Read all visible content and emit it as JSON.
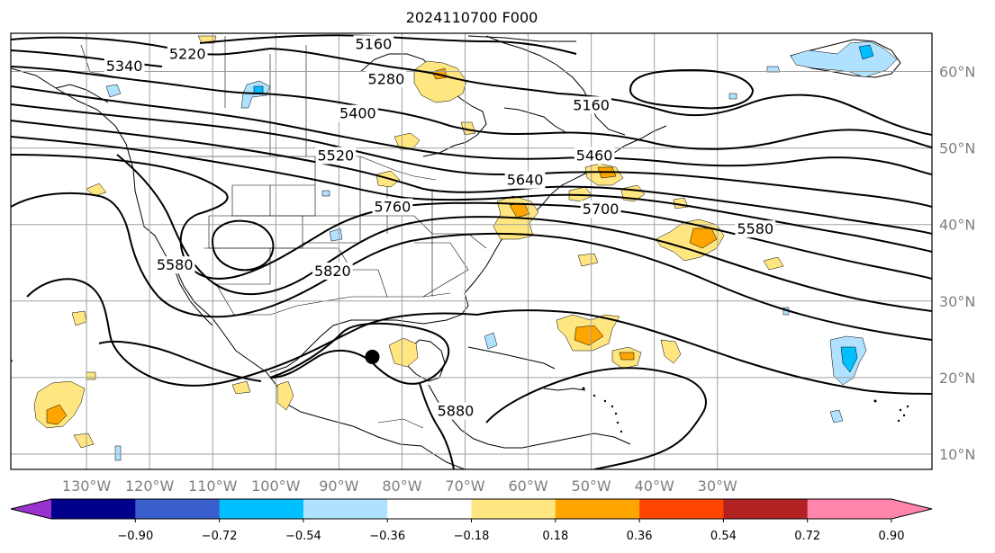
{
  "title": "2024110700 F000",
  "map": {
    "lon_range": [
      -142,
      4
    ],
    "lat_range": [
      8,
      65
    ],
    "lon_ticks": [
      {
        "value": -130,
        "label": "130°W"
      },
      {
        "value": -120,
        "label": "120°W"
      },
      {
        "value": -110,
        "label": "110°W"
      },
      {
        "value": -100,
        "label": "100°W"
      },
      {
        "value": -90,
        "label": "90°W"
      },
      {
        "value": -80,
        "label": "80°W"
      },
      {
        "value": -70,
        "label": "70°W"
      },
      {
        "value": -60,
        "label": "60°W"
      },
      {
        "value": -50,
        "label": "50°W"
      },
      {
        "value": -40,
        "label": "40°W"
      },
      {
        "value": -30,
        "label": "30°W"
      }
    ],
    "lat_ticks": [
      {
        "value": 60,
        "label": "60°N"
      },
      {
        "value": 50,
        "label": "50°N"
      },
      {
        "value": 40,
        "label": "40°N"
      },
      {
        "value": 30,
        "label": "30°N"
      },
      {
        "value": 20,
        "label": "20°N"
      },
      {
        "value": 10,
        "label": "10°N"
      }
    ],
    "contour_labels": [
      {
        "text": "5160",
        "lon": -84.5,
        "lat": 63.5
      },
      {
        "text": "5220",
        "lon": -114,
        "lat": 62.2
      },
      {
        "text": "5340",
        "lon": -124,
        "lat": 60.6
      },
      {
        "text": "5280",
        "lon": -82.5,
        "lat": 58.9
      },
      {
        "text": "5160",
        "lon": -50,
        "lat": 55.5
      },
      {
        "text": "5400",
        "lon": -87,
        "lat": 54.4
      },
      {
        "text": "5520",
        "lon": -90.5,
        "lat": 48.9
      },
      {
        "text": "5460",
        "lon": -49.5,
        "lat": 48.9
      },
      {
        "text": "5640",
        "lon": -60.5,
        "lat": 45.7
      },
      {
        "text": "5760",
        "lon": -81.5,
        "lat": 42.2
      },
      {
        "text": "5700",
        "lon": -48.5,
        "lat": 41.9
      },
      {
        "text": "5580",
        "lon": -24,
        "lat": 39.3
      },
      {
        "text": "5580",
        "lon": -116,
        "lat": 34.6
      },
      {
        "text": "5820",
        "lon": -91,
        "lat": 33.8
      },
      {
        "text": "5880",
        "lon": -71.5,
        "lat": 15.5
      }
    ],
    "storm_marker": {
      "lon": -84.7,
      "lat": 22.7
    }
  },
  "colorbar": {
    "ticks": [
      "−0.90",
      "−0.72",
      "−0.54",
      "−0.36",
      "−0.18",
      "0.18",
      "0.36",
      "0.54",
      "0.72",
      "0.90"
    ],
    "colors": [
      "#9a32cd",
      "#00008b",
      "#3a5fcd",
      "#00bfff",
      "#b0e2ff",
      "#ffffff",
      "#ffe680",
      "#ffa500",
      "#ff4500",
      "#b22222",
      "#ff85ab",
      "#ff85ab"
    ]
  }
}
